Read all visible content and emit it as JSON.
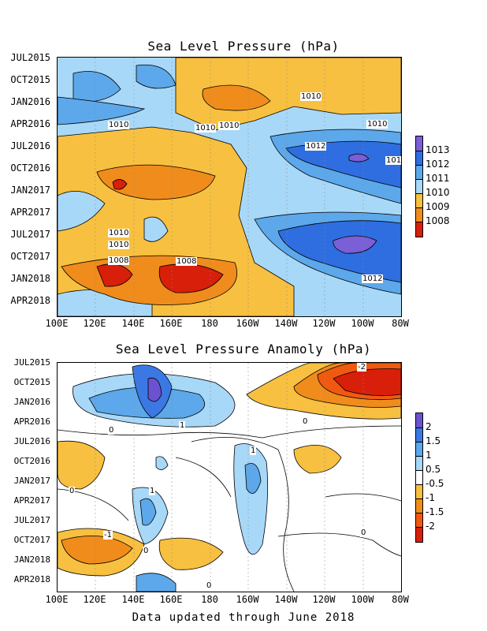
{
  "chart_data": [
    {
      "type": "heatmap",
      "title": "Sea Level Pressure (hPa)",
      "y_ticks": [
        "JUL2015",
        "OCT2015",
        "JAN2016",
        "APR2016",
        "JUL2016",
        "OCT2016",
        "JAN2017",
        "APR2017",
        "JUL2017",
        "OCT2017",
        "JAN2018",
        "APR2018"
      ],
      "x_ticks": [
        "100E",
        "120E",
        "140E",
        "160E",
        "180",
        "160W",
        "140W",
        "120W",
        "100W",
        "80W"
      ],
      "colorbar": [
        "1013",
        "1012",
        "1011",
        "1010",
        "1009",
        "1008"
      ],
      "colors": [
        "#7a5fd6",
        "#2f6ee0",
        "#5ca8ea",
        "#a8d8f8",
        "#f8c040",
        "#f08c1c",
        "#d81f0a"
      ],
      "contour_labels": [
        "1010",
        "1010",
        "1010",
        "1010",
        "1010",
        "1012",
        "101",
        "1010",
        "1010",
        "1008",
        "1008",
        "1012"
      ]
    },
    {
      "type": "heatmap",
      "title": "Sea Level Pressure Anamoly (hPa)",
      "y_ticks": [
        "JUL2015",
        "OCT2015",
        "JAN2016",
        "APR2016",
        "JUL2016",
        "OCT2016",
        "JAN2017",
        "APR2017",
        "JUL2017",
        "OCT2017",
        "JAN2018",
        "APR2018"
      ],
      "x_ticks": [
        "100E",
        "120E",
        "140E",
        "160E",
        "180",
        "160W",
        "140W",
        "120W",
        "100W",
        "80W"
      ],
      "colorbar": [
        "2",
        "1.5",
        "1",
        "0.5",
        "-0.5",
        "-1",
        "-1.5",
        "-2"
      ],
      "colors": [
        "#6a52d0",
        "#3c78e4",
        "#5ca8ea",
        "#a8d8f8",
        "#ffffff",
        "#f8c040",
        "#f08c1c",
        "#f05a10",
        "#d81f0a"
      ],
      "contour_labels": [
        "-2",
        "1",
        "0",
        "0",
        "1",
        "0",
        "1",
        "0",
        "-1",
        "0",
        "0"
      ]
    }
  ],
  "footer": "Data updated through June 2018"
}
